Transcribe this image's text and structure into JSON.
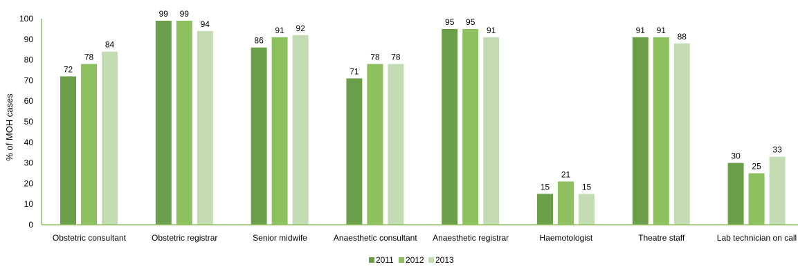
{
  "chart_data": {
    "type": "bar",
    "title": "",
    "xlabel": "",
    "ylabel": "% of MOH cases",
    "ylim": [
      0,
      100
    ],
    "yticks": [
      0,
      10,
      20,
      30,
      40,
      50,
      60,
      70,
      80,
      90,
      100
    ],
    "grid": false,
    "legend_position": "bottom",
    "categories": [
      "Obstetric consultant",
      "Obstetric registrar",
      "Senior midwife",
      "Anaesthetic consultant",
      "Anaesthetic registrar",
      "Haemotologist",
      "Theatre staff",
      "Lab technician on call"
    ],
    "series": [
      {
        "name": "2011",
        "color": "#6a9e48",
        "values": [
          72,
          99,
          86,
          71,
          95,
          15,
          91,
          30
        ],
        "labels": [
          "72",
          "99",
          "86",
          "71",
          "95",
          "15",
          "91",
          "30"
        ]
      },
      {
        "name": "2012",
        "color": "#8dc15f",
        "values": [
          78,
          99,
          91,
          78,
          95,
          21,
          91,
          25
        ],
        "labels": [
          "78",
          "99",
          "91",
          "78",
          "95",
          "21",
          "91",
          "25"
        ]
      },
      {
        "name": "2013",
        "color": "#c3dcb4",
        "values": [
          84,
          94,
          92,
          78,
          91,
          15,
          88,
          33
        ],
        "labels": [
          "84",
          "94",
          "92",
          "78",
          "91",
          "15",
          "88",
          "33"
        ]
      }
    ],
    "axis_color": "#8dc15f"
  }
}
